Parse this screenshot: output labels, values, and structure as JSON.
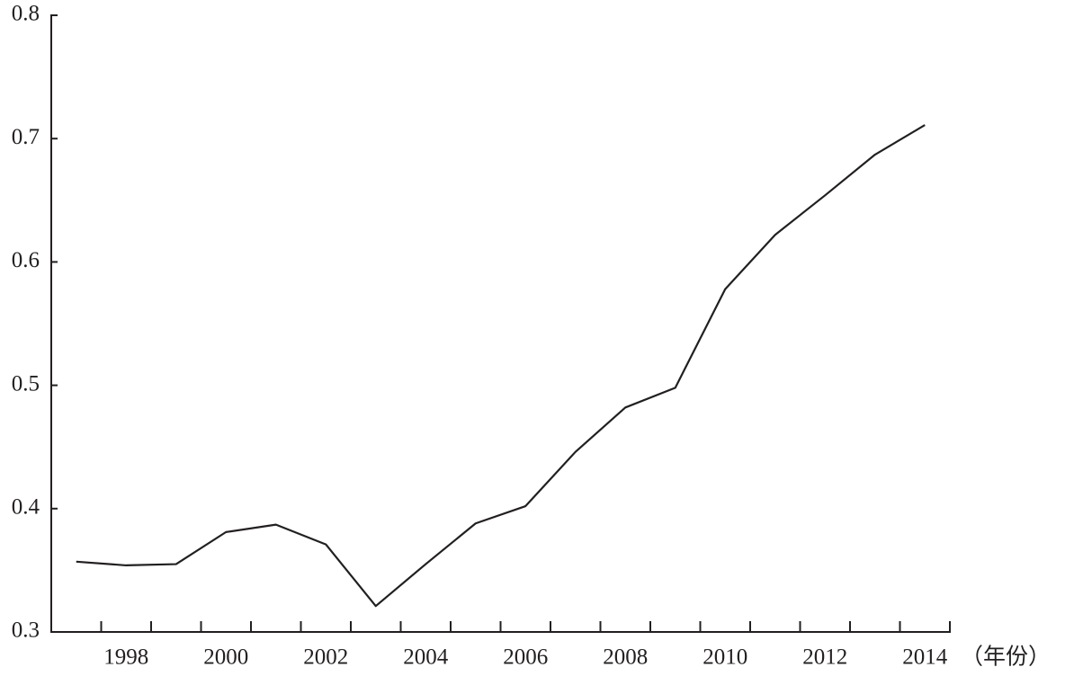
{
  "chart_data": {
    "type": "line",
    "categories": [
      null,
      "1998",
      null,
      "2000",
      null,
      "2002",
      null,
      "2004",
      null,
      "2006",
      null,
      "2008",
      null,
      "2010",
      null,
      "2012",
      null,
      "2014"
    ],
    "x_label": "（年份）",
    "series": [
      {
        "color": "#231f20",
        "values": [
          0.357,
          0.354,
          0.355,
          0.381,
          0.387,
          0.371,
          0.321,
          0.355,
          0.388,
          0.402,
          0.446,
          0.482,
          0.498,
          0.578,
          0.622,
          0.654,
          0.687,
          0.711
        ]
      }
    ],
    "ylim": [
      0.3,
      0.8
    ],
    "yticks": [
      0.3,
      0.4,
      0.5,
      0.6,
      0.7,
      0.8
    ]
  }
}
